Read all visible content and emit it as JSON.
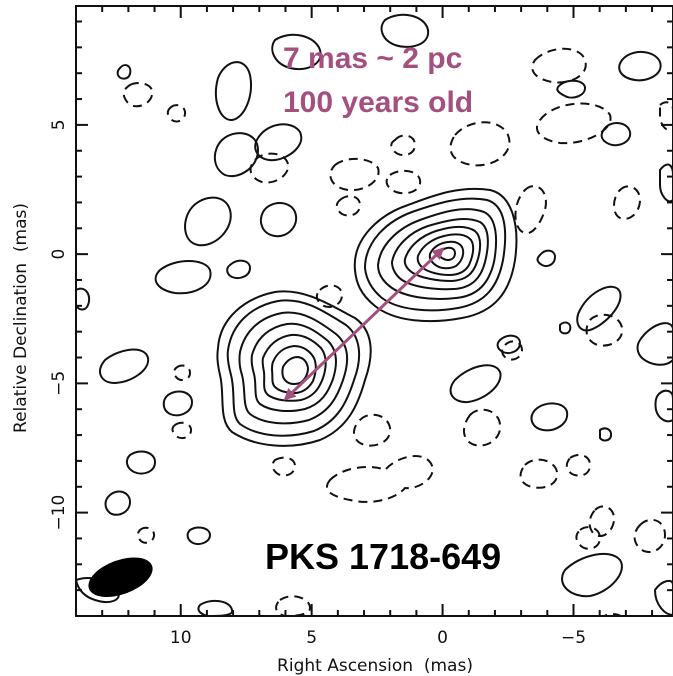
{
  "chart_data": {
    "type": "contour",
    "title": "",
    "xlabel": "Right Ascension  (mas)",
    "ylabel": "Relative Declination  (mas)",
    "xlim": [
      14.0,
      -8.8
    ],
    "ylim": [
      -14.0,
      9.6
    ],
    "x_reversed": true,
    "xticks": [
      10,
      5,
      0,
      -5
    ],
    "xtick_labels": [
      "10",
      "5",
      "0",
      "−5"
    ],
    "yticks": [
      5,
      0,
      -5,
      -10
    ],
    "ytick_labels": [
      "5",
      "0",
      "−5",
      "−10"
    ],
    "grid": false,
    "source_label": "PKS 1718-649",
    "annotations": [
      "7 mas ~ 2 pc",
      "100 years old"
    ],
    "annotation_color": "#a4507f",
    "separation_arrow": {
      "from": [
        6.0,
        -5.6
      ],
      "to": [
        0.0,
        0.2
      ]
    },
    "components": [
      {
        "name": "",
        "x": 0.0,
        "y": 0.2
      },
      {
        "name": "",
        "x": 6.0,
        "y": -5.6
      }
    ],
    "beam": {
      "x": 12.3,
      "y": -12.5,
      "major_mas": 1.8,
      "minor_mas": 1.0,
      "pa_deg": 70
    }
  }
}
